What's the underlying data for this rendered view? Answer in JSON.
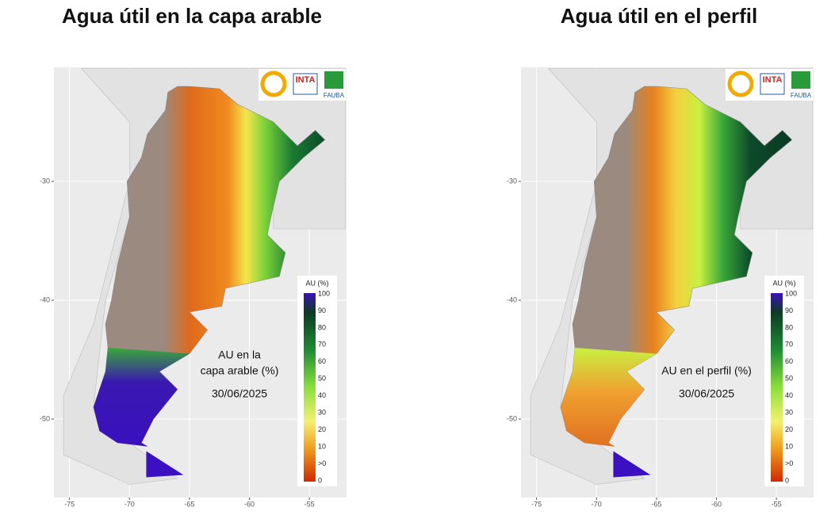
{
  "panels": [
    {
      "title": "Agua útil en la capa arable",
      "annotation": [
        "AU en la",
        "capa arable (%)"
      ],
      "date": "30/06/2025"
    },
    {
      "title": "Agua útil en el perfil",
      "annotation": [
        "AU en el perfil (%)"
      ],
      "date": "30/06/2025"
    }
  ],
  "logos": [
    "INTA",
    "FAUBA"
  ],
  "legend": {
    "title": "AU (%)",
    "labels": [
      "100",
      "90",
      "80",
      "70",
      "60",
      "50",
      "40",
      "30",
      "20",
      "10",
      ">0",
      "0"
    ]
  },
  "map": {
    "xlim": [
      -76.3,
      -51.9
    ],
    "ylim": [
      -56.6,
      -20.4
    ],
    "xticks": [
      -75,
      -70,
      -65,
      -60,
      -55
    ],
    "yticks": [
      -30,
      -40,
      -50
    ]
  }
}
